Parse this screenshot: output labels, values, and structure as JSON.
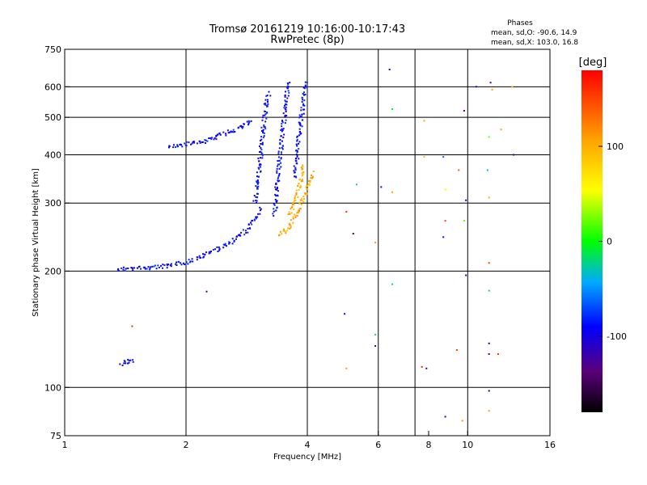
{
  "chart_data": {
    "type": "scatter",
    "title": "Tromsø 20161219 10:16:00-10:17:43",
    "subtitle": "RwPretec (8p)",
    "xlabel": "Frequency [MHz]",
    "ylabel": "Stationary phase Virtual Height [km]",
    "x_scale": "log",
    "y_scale": "log",
    "xlim": [
      1,
      16
    ],
    "ylim": [
      75,
      750
    ],
    "x_ticks": [
      1,
      2,
      4,
      6,
      8,
      10,
      16
    ],
    "x_tick_labels": [
      "1",
      "2",
      "4",
      "6",
      "8",
      "10",
      "16"
    ],
    "y_ticks": [
      75,
      100,
      200,
      300,
      400,
      500,
      600,
      750
    ],
    "y_tick_labels": [
      "75",
      "100",
      "200",
      "300",
      "400",
      "500",
      "600",
      "750"
    ],
    "x_grid": [
      2,
      4,
      6,
      7.4,
      10
    ],
    "y_grid": [
      100,
      200,
      300,
      400,
      500,
      600
    ],
    "phase_info": {
      "heading": "Phases",
      "line1": "mean, sd,O: -90.6, 14.9",
      "line2": "mean, sd,X: 103.0, 16.8"
    },
    "colorbar": {
      "label": "[deg]",
      "range": [
        -180,
        180
      ],
      "ticks": [
        100,
        0,
        -100
      ],
      "tick_labels": [
        "100",
        "0",
        "-100"
      ]
    },
    "series": [
      {
        "name": "O",
        "color_phase": -90,
        "segments": [
          {
            "x": [
              1.35,
              1.45,
              1.6,
              1.8,
              2.0,
              2.2,
              2.4,
              2.6,
              2.8,
              2.95,
              3.05
            ],
            "y": [
              203,
              204,
              205,
              207,
              212,
              220,
              230,
              240,
              255,
              272,
              290
            ]
          },
          {
            "x": [
              1.8,
              2.0,
              2.2,
              2.4,
              2.6,
              2.8,
              2.9
            ],
            "y": [
              422,
              428,
              435,
              450,
              465,
              480,
              490
            ]
          },
          {
            "x": [
              2.95,
              3.0,
              3.05,
              3.1,
              3.15,
              3.2
            ],
            "y": [
              300,
              340,
              400,
              470,
              550,
              580
            ]
          },
          {
            "x": [
              3.3,
              3.35,
              3.4,
              3.45,
              3.5,
              3.55,
              3.6
            ],
            "y": [
              280,
              330,
              390,
              450,
              520,
              580,
              620
            ]
          },
          {
            "x": [
              3.7,
              3.75,
              3.8,
              3.85,
              3.9,
              3.95
            ],
            "y": [
              350,
              400,
              450,
              500,
              560,
              620
            ]
          },
          {
            "x": [
              1.38,
              1.42,
              1.46
            ],
            "y": [
              115,
              117,
              118
            ]
          }
        ]
      },
      {
        "name": "X",
        "color_phase": 100,
        "segments": [
          {
            "x": [
              3.4,
              3.5,
              3.6,
              3.7,
              3.8,
              3.9,
              4.0,
              4.1
            ],
            "y": [
              250,
              255,
              262,
              275,
              290,
              310,
              330,
              360
            ]
          },
          {
            "x": [
              3.6,
              3.7,
              3.8,
              3.9
            ],
            "y": [
              280,
              300,
              330,
              380
            ]
          }
        ]
      },
      {
        "name": "scatter",
        "points": [
          {
            "x": 6.4,
            "y": 665,
            "p": -110
          },
          {
            "x": 6.5,
            "y": 525,
            "p": -10
          },
          {
            "x": 7.8,
            "y": 490,
            "p": 110
          },
          {
            "x": 9.8,
            "y": 520,
            "p": -140
          },
          {
            "x": 10.5,
            "y": 600,
            "p": -110
          },
          {
            "x": 11.4,
            "y": 615,
            "p": -120
          },
          {
            "x": 11.5,
            "y": 590,
            "p": 110
          },
          {
            "x": 12.9,
            "y": 600,
            "p": 95
          },
          {
            "x": 11.3,
            "y": 445,
            "p": 20
          },
          {
            "x": 12.1,
            "y": 465,
            "p": 105
          },
          {
            "x": 13.0,
            "y": 400,
            "p": -120
          },
          {
            "x": 11.2,
            "y": 365,
            "p": -40
          },
          {
            "x": 8.7,
            "y": 395,
            "p": -60
          },
          {
            "x": 7.8,
            "y": 395,
            "p": 90
          },
          {
            "x": 9.5,
            "y": 365,
            "p": 140
          },
          {
            "x": 5.3,
            "y": 335,
            "p": -20
          },
          {
            "x": 6.1,
            "y": 330,
            "p": -110
          },
          {
            "x": 6.5,
            "y": 320,
            "p": 110
          },
          {
            "x": 8.8,
            "y": 325,
            "p": 50
          },
          {
            "x": 9.9,
            "y": 305,
            "p": -120
          },
          {
            "x": 11.3,
            "y": 310,
            "p": 100
          },
          {
            "x": 9.8,
            "y": 270,
            "p": 20
          },
          {
            "x": 8.8,
            "y": 270,
            "p": 150
          },
          {
            "x": 5.0,
            "y": 285,
            "p": 160
          },
          {
            "x": 5.2,
            "y": 250,
            "p": -150
          },
          {
            "x": 5.9,
            "y": 237,
            "p": 110
          },
          {
            "x": 8.7,
            "y": 245,
            "p": -110
          },
          {
            "x": 11.3,
            "y": 210,
            "p": 150
          },
          {
            "x": 9.9,
            "y": 195,
            "p": -120
          },
          {
            "x": 6.5,
            "y": 185,
            "p": -20
          },
          {
            "x": 11.3,
            "y": 178,
            "p": -20
          },
          {
            "x": 2.25,
            "y": 177,
            "p": -140
          },
          {
            "x": 4.95,
            "y": 155,
            "p": -110
          },
          {
            "x": 5.9,
            "y": 137,
            "p": -20
          },
          {
            "x": 5.9,
            "y": 128,
            "p": -110
          },
          {
            "x": 1.47,
            "y": 144,
            "p": 160
          },
          {
            "x": 9.4,
            "y": 125,
            "p": 150
          },
          {
            "x": 11.3,
            "y": 122,
            "p": -140
          },
          {
            "x": 11.3,
            "y": 130,
            "p": -150
          },
          {
            "x": 11.9,
            "y": 122,
            "p": 160
          },
          {
            "x": 7.7,
            "y": 113,
            "p": 160
          },
          {
            "x": 7.9,
            "y": 112,
            "p": -140
          },
          {
            "x": 5.0,
            "y": 112,
            "p": 110
          },
          {
            "x": 11.3,
            "y": 98,
            "p": -150
          },
          {
            "x": 11.3,
            "y": 87,
            "p": 110
          },
          {
            "x": 8.8,
            "y": 84,
            "p": -110
          },
          {
            "x": 9.7,
            "y": 82,
            "p": 110
          }
        ]
      }
    ]
  }
}
